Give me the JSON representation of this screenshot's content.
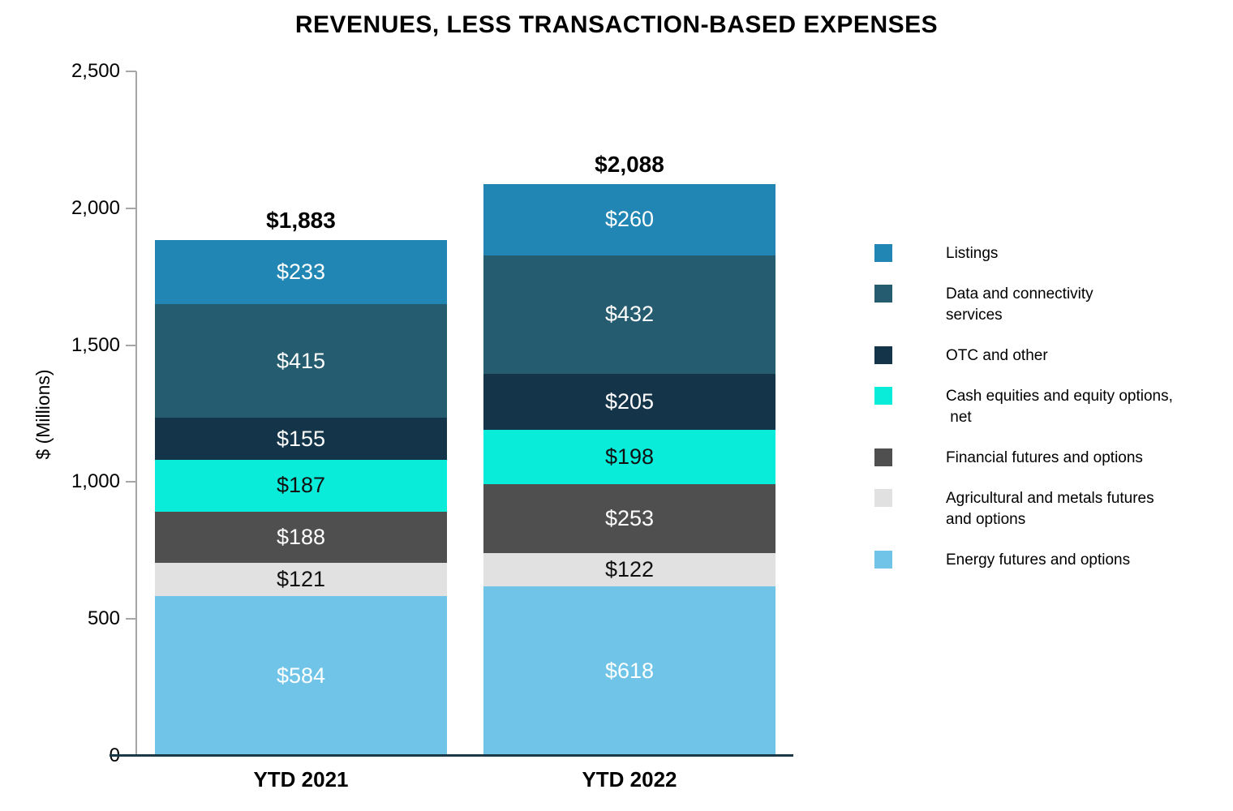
{
  "page": {
    "title": "REVENUES, LESS TRANSACTION-BASED EXPENSES"
  },
  "chart_data": {
    "type": "bar",
    "stacked": true,
    "title": "REVENUES, LESS TRANSACTION-BASED EXPENSES",
    "xlabel": "",
    "ylabel": "$ (Millions)",
    "ylim": [
      0,
      2500
    ],
    "yticks": [
      0,
      500,
      1000,
      1500,
      2000,
      2500
    ],
    "ytick_labels": [
      "0",
      "500",
      "1,000",
      "1,500",
      "2,000",
      "2,500"
    ],
    "grid": false,
    "legend_position": "right",
    "categories": [
      "YTD 2021",
      "YTD 2022"
    ],
    "totals": [
      1883,
      2088
    ],
    "total_labels": [
      "$1,883",
      "$2,088"
    ],
    "value_prefix": "$",
    "series": [
      {
        "name": "Listings",
        "color": "#2186B4",
        "label_color": "#FFFFFF",
        "values": [
          233,
          260
        ],
        "value_labels": [
          "$233",
          "$260"
        ]
      },
      {
        "name": "Data and connectivity\nservices",
        "color": "#265C70",
        "label_color": "#FFFFFF",
        "values": [
          415,
          432
        ],
        "value_labels": [
          "$415",
          "$432"
        ]
      },
      {
        "name": "OTC and other",
        "color": "#14344A",
        "label_color": "#FFFFFF",
        "values": [
          155,
          205
        ],
        "value_labels": [
          "$155",
          "$205"
        ]
      },
      {
        "name": "Cash equities and equity options,\n net",
        "color": "#09ECDA",
        "label_color": "#111111",
        "values": [
          187,
          198
        ],
        "value_labels": [
          "$187",
          "$198"
        ]
      },
      {
        "name": "Financial futures and options",
        "color": "#4F4F4F",
        "label_color": "#FFFFFF",
        "values": [
          188,
          253
        ],
        "value_labels": [
          "$188",
          "$253"
        ]
      },
      {
        "name": "Agricultural and metals futures\nand options",
        "color": "#E1E1E1",
        "label_color": "#111111",
        "values": [
          121,
          122
        ],
        "value_labels": [
          "$121",
          "$122"
        ]
      },
      {
        "name": "Energy futures and options",
        "color": "#6FC4E8",
        "label_color": "#FFFFFF",
        "values": [
          584,
          618
        ],
        "value_labels": [
          "$584",
          "$618"
        ]
      }
    ]
  },
  "axis_colors": {
    "y_axis": "#A6A6A6",
    "x_baseline": "#1C3947"
  }
}
